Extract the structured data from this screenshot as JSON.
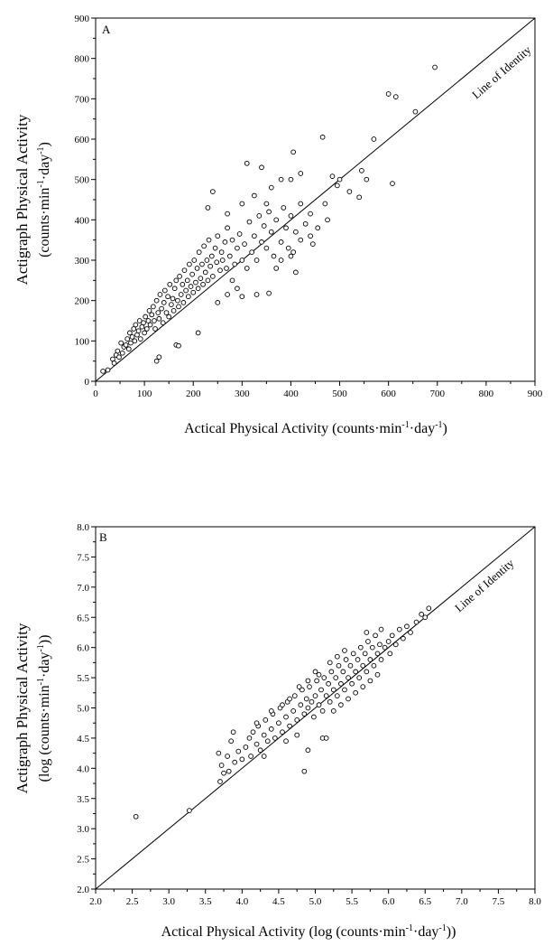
{
  "chart_data": [
    {
      "type": "scatter",
      "panel_label": "A",
      "xlabel": "Actical Physical Activity (counts·min",
      "xlabel_sup1": "-1",
      "xlabel_mid": "·day",
      "xlabel_sup2": "-1",
      "xlabel_end": ")",
      "ylabel_line1": "Actigraph Physical Activity",
      "ylabel_line2_a": "(counts·min",
      "ylabel_line2_sup1": "-1",
      "ylabel_line2_b": "·day",
      "ylabel_line2_sup2": "-1",
      "ylabel_line2_c": ")",
      "xlim": [
        0,
        900
      ],
      "ylim": [
        0,
        900
      ],
      "xticks": [
        "0",
        "100",
        "200",
        "300",
        "400",
        "500",
        "600",
        "700",
        "800",
        "900"
      ],
      "yticks": [
        "0",
        "100",
        "200",
        "300",
        "400",
        "500",
        "600",
        "700",
        "800",
        "900"
      ],
      "reference_line": {
        "label": "Line of Identity",
        "from": [
          0,
          0
        ],
        "to": [
          900,
          900
        ]
      },
      "marker": "open-circle",
      "note": "approx. 600 participants; cloud summarized by dense central mass plus listed outliers",
      "points": [
        [
          15,
          25
        ],
        [
          25,
          28
        ],
        [
          35,
          55
        ],
        [
          38,
          45
        ],
        [
          42,
          65
        ],
        [
          45,
          75
        ],
        [
          48,
          60
        ],
        [
          52,
          95
        ],
        [
          55,
          70
        ],
        [
          58,
          85
        ],
        [
          62,
          90
        ],
        [
          65,
          105
        ],
        [
          68,
          80
        ],
        [
          70,
          120
        ],
        [
          72,
          95
        ],
        [
          75,
          110
        ],
        [
          78,
          130
        ],
        [
          80,
          100
        ],
        [
          82,
          140
        ],
        [
          85,
          115
        ],
        [
          88,
          125
        ],
        [
          90,
          150
        ],
        [
          92,
          105
        ],
        [
          95,
          135
        ],
        [
          98,
          145
        ],
        [
          100,
          120
        ],
        [
          102,
          160
        ],
        [
          105,
          130
        ],
        [
          108,
          150
        ],
        [
          110,
          175
        ],
        [
          112,
          140
        ],
        [
          115,
          165
        ],
        [
          118,
          185
        ],
        [
          120,
          150
        ],
        [
          122,
          130
        ],
        [
          125,
          200
        ],
        [
          128,
          170
        ],
        [
          130,
          155
        ],
        [
          132,
          215
        ],
        [
          135,
          180
        ],
        [
          138,
          145
        ],
        [
          140,
          195
        ],
        [
          142,
          225
        ],
        [
          145,
          170
        ],
        [
          148,
          210
        ],
        [
          150,
          160
        ],
        [
          152,
          240
        ],
        [
          155,
          190
        ],
        [
          158,
          205
        ],
        [
          160,
          175
        ],
        [
          162,
          230
        ],
        [
          165,
          250
        ],
        [
          168,
          200
        ],
        [
          170,
          185
        ],
        [
          172,
          260
        ],
        [
          175,
          215
        ],
        [
          178,
          240
        ],
        [
          180,
          195
        ],
        [
          182,
          275
        ],
        [
          185,
          225
        ],
        [
          188,
          250
        ],
        [
          190,
          210
        ],
        [
          192,
          290
        ],
        [
          195,
          235
        ],
        [
          198,
          265
        ],
        [
          200,
          220
        ],
        [
          202,
          300
        ],
        [
          205,
          245
        ],
        [
          208,
          280
        ],
        [
          210,
          230
        ],
        [
          212,
          320
        ],
        [
          215,
          255
        ],
        [
          218,
          290
        ],
        [
          220,
          240
        ],
        [
          222,
          335
        ],
        [
          225,
          270
        ],
        [
          228,
          300
        ],
        [
          230,
          250
        ],
        [
          232,
          350
        ],
        [
          235,
          285
        ],
        [
          238,
          310
        ],
        [
          240,
          260
        ],
        [
          245,
          330
        ],
        [
          248,
          295
        ],
        [
          250,
          360
        ],
        [
          255,
          275
        ],
        [
          258,
          320
        ],
        [
          260,
          300
        ],
        [
          265,
          345
        ],
        [
          268,
          280
        ],
        [
          270,
          380
        ],
        [
          275,
          310
        ],
        [
          280,
          350
        ],
        [
          285,
          290
        ],
        [
          290,
          330
        ],
        [
          295,
          365
        ],
        [
          300,
          300
        ],
        [
          305,
          340
        ],
        [
          310,
          280
        ],
        [
          315,
          395
        ],
        [
          320,
          320
        ],
        [
          325,
          360
        ],
        [
          330,
          300
        ],
        [
          335,
          410
        ],
        [
          340,
          345
        ],
        [
          345,
          385
        ],
        [
          350,
          330
        ],
        [
          355,
          420
        ],
        [
          360,
          370
        ],
        [
          365,
          310
        ],
        [
          370,
          400
        ],
        [
          380,
          345
        ],
        [
          385,
          430
        ],
        [
          390,
          380
        ],
        [
          395,
          330
        ],
        [
          400,
          410
        ],
        [
          410,
          370
        ],
        [
          420,
          440
        ],
        [
          430,
          390
        ],
        [
          440,
          360
        ],
        [
          240,
          470
        ],
        [
          310,
          540
        ],
        [
          340,
          530
        ],
        [
          230,
          430
        ],
        [
          270,
          415
        ],
        [
          130,
          60
        ],
        [
          125,
          50
        ],
        [
          165,
          90
        ],
        [
          170,
          88
        ],
        [
          210,
          120
        ],
        [
          330,
          215
        ],
        [
          355,
          218
        ],
        [
          290,
          230
        ],
        [
          300,
          210
        ],
        [
          250,
          195
        ],
        [
          270,
          215
        ],
        [
          280,
          250
        ],
        [
          370,
          280
        ],
        [
          380,
          300
        ],
        [
          400,
          310
        ],
        [
          405,
          320
        ],
        [
          410,
          270
        ],
        [
          420,
          350
        ],
        [
          445,
          340
        ],
        [
          455,
          380
        ],
        [
          465,
          605
        ],
        [
          405,
          568
        ],
        [
          420,
          515
        ],
        [
          400,
          500
        ],
        [
          380,
          500
        ],
        [
          470,
          440
        ],
        [
          475,
          400
        ],
        [
          485,
          508
        ],
        [
          495,
          485
        ],
        [
          500,
          500
        ],
        [
          540,
          456
        ],
        [
          545,
          522
        ],
        [
          555,
          500
        ],
        [
          570,
          600
        ],
        [
          600,
          712
        ],
        [
          608,
          490
        ],
        [
          615,
          705
        ],
        [
          655,
          668
        ],
        [
          695,
          778
        ],
        [
          440,
          415
        ],
        [
          520,
          470
        ],
        [
          360,
          480
        ],
        [
          350,
          440
        ],
        [
          325,
          460
        ],
        [
          300,
          440
        ]
      ]
    },
    {
      "type": "scatter",
      "panel_label": "B",
      "xlabel": "Actical Physical Activity (log (counts·min",
      "xlabel_sup1": "-1",
      "xlabel_mid": "·day",
      "xlabel_sup2": "-1",
      "xlabel_end": "))",
      "ylabel_line1": "Actigraph Physical Activity",
      "ylabel_line2_a": "(log (counts·min",
      "ylabel_line2_sup1": "-1",
      "ylabel_line2_b": "·day",
      "ylabel_line2_sup2": "-1",
      "ylabel_line2_c": "))",
      "xlim": [
        2.0,
        8.0
      ],
      "ylim": [
        2.0,
        8.0
      ],
      "xticks": [
        "2.0",
        "2.5",
        "3.0",
        "3.5",
        "4.0",
        "4.5",
        "5.0",
        "5.5",
        "6.0",
        "6.5",
        "7.0",
        "7.5",
        "8.0"
      ],
      "yticks": [
        "2.0",
        "2.5",
        "3.0",
        "3.5",
        "4.0",
        "4.5",
        "5.0",
        "5.5",
        "6.0",
        "6.5",
        "7.0",
        "7.5",
        "8.0"
      ],
      "reference_line": {
        "label": "Line of Identity",
        "from": [
          2.0,
          2.0
        ],
        "to": [
          8.0,
          8.0
        ]
      },
      "marker": "open-circle",
      "points": [
        [
          2.55,
          3.2
        ],
        [
          3.28,
          3.3
        ],
        [
          3.68,
          4.25
        ],
        [
          3.7,
          3.78
        ],
        [
          3.72,
          4.05
        ],
        [
          3.75,
          3.92
        ],
        [
          3.8,
          4.2
        ],
        [
          3.82,
          3.95
        ],
        [
          3.85,
          4.45
        ],
        [
          3.88,
          4.6
        ],
        [
          3.9,
          4.1
        ],
        [
          3.95,
          4.28
        ],
        [
          4.0,
          4.15
        ],
        [
          4.05,
          4.35
        ],
        [
          4.1,
          4.5
        ],
        [
          4.12,
          4.2
        ],
        [
          4.15,
          4.6
        ],
        [
          4.2,
          4.4
        ],
        [
          4.22,
          4.7
        ],
        [
          4.25,
          4.3
        ],
        [
          4.3,
          4.55
        ],
        [
          4.32,
          4.8
        ],
        [
          4.35,
          4.45
        ],
        [
          4.4,
          4.65
        ],
        [
          4.42,
          4.9
        ],
        [
          4.45,
          4.5
        ],
        [
          4.5,
          4.75
        ],
        [
          4.52,
          5.0
        ],
        [
          4.55,
          4.6
        ],
        [
          4.6,
          4.85
        ],
        [
          4.62,
          5.1
        ],
        [
          4.65,
          4.7
        ],
        [
          4.7,
          4.95
        ],
        [
          4.72,
          5.2
        ],
        [
          4.75,
          4.8
        ],
        [
          4.8,
          5.05
        ],
        [
          4.82,
          5.3
        ],
        [
          4.85,
          4.9
        ],
        [
          4.88,
          5.15
        ],
        [
          4.9,
          5.0
        ],
        [
          4.92,
          5.35
        ],
        [
          4.95,
          5.1
        ],
        [
          4.98,
          4.85
        ],
        [
          5.0,
          5.2
        ],
        [
          5.02,
          5.45
        ],
        [
          5.05,
          5.05
        ],
        [
          5.08,
          5.3
        ],
        [
          5.1,
          4.95
        ],
        [
          5.12,
          5.5
        ],
        [
          5.15,
          5.2
        ],
        [
          5.18,
          5.4
        ],
        [
          5.2,
          5.1
        ],
        [
          5.22,
          5.6
        ],
        [
          5.25,
          5.3
        ],
        [
          5.28,
          5.5
        ],
        [
          5.3,
          5.2
        ],
        [
          5.32,
          5.7
        ],
        [
          5.35,
          5.4
        ],
        [
          5.38,
          5.6
        ],
        [
          5.4,
          5.3
        ],
        [
          5.42,
          5.8
        ],
        [
          5.45,
          5.5
        ],
        [
          5.48,
          5.7
        ],
        [
          5.5,
          5.4
        ],
        [
          5.52,
          5.9
        ],
        [
          5.55,
          5.6
        ],
        [
          5.58,
          5.8
        ],
        [
          5.6,
          5.5
        ],
        [
          5.62,
          6.0
        ],
        [
          5.65,
          5.7
        ],
        [
          5.68,
          5.9
        ],
        [
          5.7,
          5.6
        ],
        [
          5.72,
          6.1
        ],
        [
          5.75,
          5.8
        ],
        [
          5.78,
          6.0
        ],
        [
          5.8,
          5.7
        ],
        [
          5.82,
          6.2
        ],
        [
          5.85,
          5.9
        ],
        [
          5.88,
          6.05
        ],
        [
          5.9,
          5.8
        ],
        [
          5.95,
          6.0
        ],
        [
          6.0,
          6.1
        ],
        [
          6.02,
          5.9
        ],
        [
          6.05,
          6.2
        ],
        [
          6.1,
          6.05
        ],
        [
          6.15,
          6.3
        ],
        [
          6.2,
          6.15
        ],
        [
          6.25,
          6.35
        ],
        [
          6.3,
          6.25
        ],
        [
          6.38,
          6.42
        ],
        [
          6.45,
          6.55
        ],
        [
          6.5,
          6.5
        ],
        [
          6.55,
          6.65
        ],
        [
          4.85,
          3.95
        ],
        [
          5.1,
          4.5
        ],
        [
          5.15,
          4.5
        ],
        [
          4.9,
          4.3
        ],
        [
          4.3,
          4.2
        ],
        [
          4.6,
          4.45
        ],
        [
          4.75,
          4.55
        ],
        [
          5.25,
          4.95
        ],
        [
          5.35,
          5.05
        ],
        [
          5.45,
          5.15
        ],
        [
          5.55,
          5.25
        ],
        [
          5.65,
          5.35
        ],
        [
          5.75,
          5.45
        ],
        [
          5.85,
          5.55
        ],
        [
          4.55,
          5.05
        ],
        [
          4.65,
          5.15
        ],
        [
          4.78,
          5.35
        ],
        [
          4.9,
          5.45
        ],
        [
          5.05,
          5.55
        ],
        [
          5.2,
          5.75
        ],
        [
          5.4,
          5.95
        ],
        [
          5.7,
          6.25
        ],
        [
          5.9,
          6.3
        ],
        [
          4.4,
          4.95
        ],
        [
          4.2,
          4.75
        ],
        [
          5.0,
          5.6
        ],
        [
          5.3,
          5.85
        ]
      ]
    }
  ]
}
